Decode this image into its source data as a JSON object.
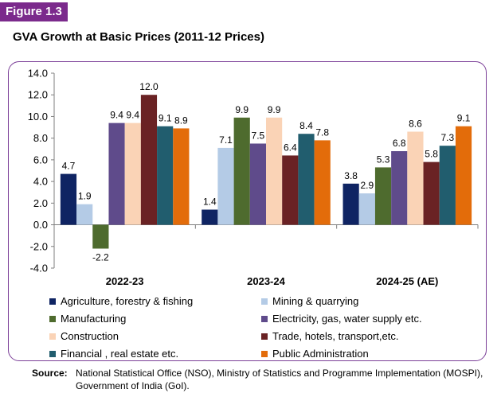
{
  "figure_label": "Figure 1.3",
  "title": "GVA Growth at Basic Prices (2011-12 Prices)",
  "source_label": "Source:",
  "source_text": "National Statistical Office (NSO), Ministry of Statistics and Programme Implementation (MOSPI), Government of India (GoI).",
  "chart_data": {
    "type": "bar",
    "categories": [
      "2022-23",
      "2023-24",
      "2024-25 (AE)"
    ],
    "ylim": [
      -4.0,
      14.0
    ],
    "yticks": [
      14.0,
      12.0,
      10.0,
      8.0,
      6.0,
      4.0,
      2.0,
      0.0,
      -2.0,
      -4.0
    ],
    "grid": false,
    "legend_position": "bottom",
    "series": [
      {
        "name": "Agriculture, forestry & fishing",
        "color": "#0f2463",
        "values": [
          4.7,
          1.4,
          3.8
        ]
      },
      {
        "name": "Mining & quarrying",
        "color": "#b4cbe6",
        "values": [
          1.9,
          7.1,
          2.9
        ]
      },
      {
        "name": "Manufacturing",
        "color": "#4e6b2e",
        "values": [
          -2.2,
          9.9,
          5.3
        ]
      },
      {
        "name": "Electricity, gas, water supply etc.",
        "color": "#5f4b8b",
        "values": [
          9.4,
          7.5,
          6.8
        ]
      },
      {
        "name": "Construction",
        "color": "#fad3b6",
        "values": [
          9.4,
          9.9,
          8.6
        ]
      },
      {
        "name": "Trade, hotels, transport,etc.",
        "color": "#6a2224",
        "values": [
          12.0,
          6.4,
          5.8
        ]
      },
      {
        "name": "Financial , real estate etc.",
        "color": "#215d6e",
        "values": [
          9.1,
          8.4,
          7.3
        ]
      },
      {
        "name": "Public Administration",
        "color": "#e36c0a",
        "values": [
          8.9,
          7.8,
          9.1
        ]
      }
    ]
  }
}
